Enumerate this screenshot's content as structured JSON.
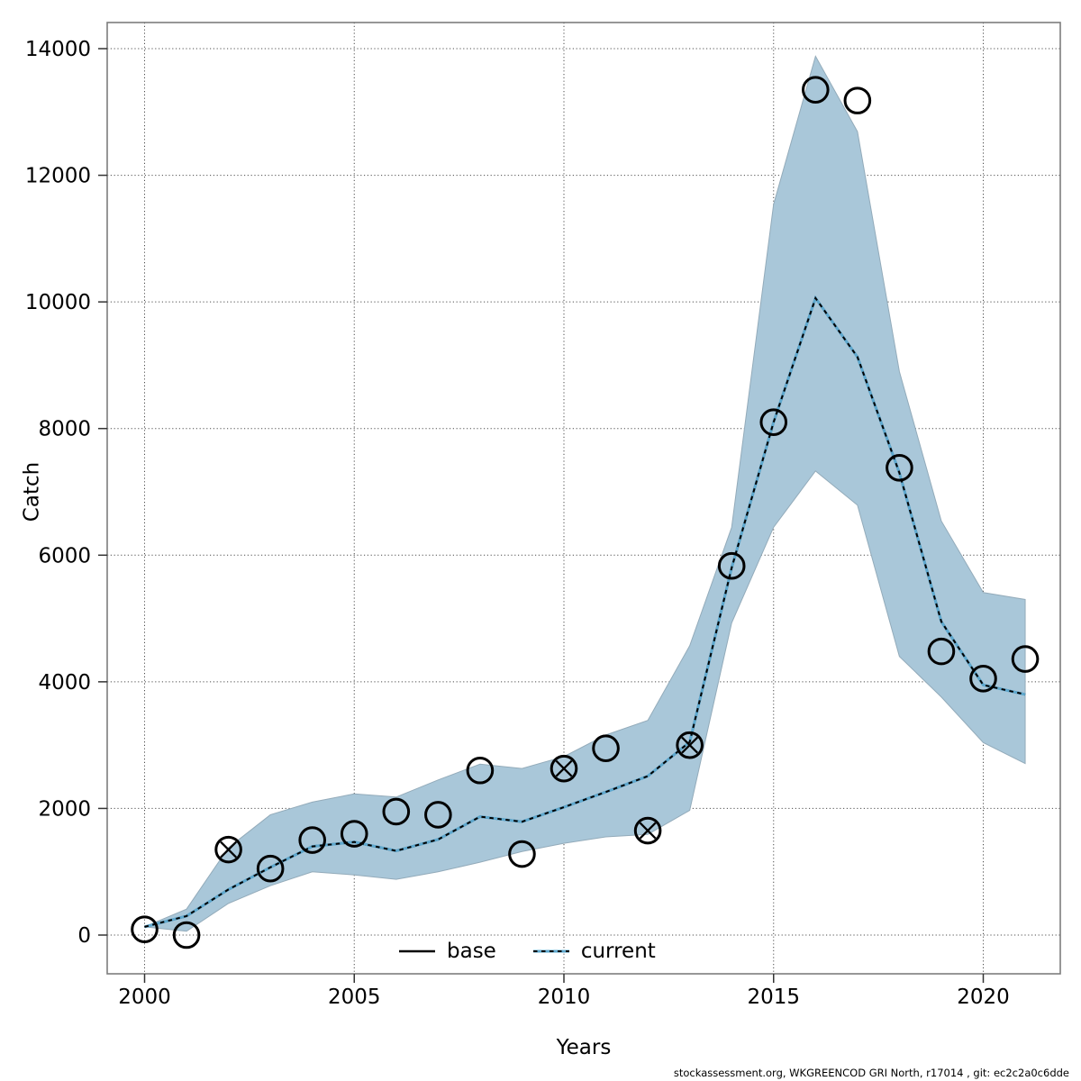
{
  "chart_data": {
    "type": "line",
    "title": "",
    "xlabel": "Years",
    "ylabel": "Catch",
    "x_ticks": [
      2000,
      2005,
      2010,
      2015,
      2020
    ],
    "y_ticks": [
      0,
      2000,
      4000,
      6000,
      8000,
      10000,
      12000,
      14000
    ],
    "xlim": [
      1999.1,
      2021.85
    ],
    "ylim": [
      -610,
      14410
    ],
    "grid": true,
    "years": [
      2000,
      2001,
      2002,
      2003,
      2004,
      2005,
      2006,
      2007,
      2008,
      2009,
      2010,
      2011,
      2012,
      2013,
      2014,
      2015,
      2016,
      2017,
      2018,
      2019,
      2020,
      2021
    ],
    "series": [
      {
        "name": "base",
        "style": "solid",
        "color": "#000000",
        "values": [
          130,
          300,
          720,
          1070,
          1400,
          1470,
          1330,
          1510,
          1870,
          1790,
          2020,
          2260,
          2510,
          3050,
          5800,
          8100,
          10060,
          9130,
          7300,
          4950,
          3950,
          3800
        ]
      },
      {
        "name": "current",
        "style": "dotted",
        "color": "#5ea8ce",
        "dash_color": "#000000",
        "values": [
          130,
          300,
          720,
          1070,
          1400,
          1470,
          1330,
          1510,
          1870,
          1790,
          2020,
          2260,
          2510,
          3050,
          5800,
          8100,
          10060,
          9130,
          7300,
          4950,
          3950,
          3800
        ]
      }
    ],
    "band": {
      "name": "current-confidence-interval",
      "fill": "#a9c7d9",
      "edge": "#93abba",
      "low": [
        130,
        60,
        500,
        780,
        1000,
        950,
        880,
        1000,
        1150,
        1320,
        1450,
        1550,
        1590,
        1970,
        4930,
        6440,
        7330,
        6790,
        4400,
        3760,
        3040,
        2710
      ],
      "high": [
        130,
        410,
        1380,
        1900,
        2100,
        2230,
        2180,
        2450,
        2700,
        2630,
        2820,
        3160,
        3390,
        4570,
        6440,
        11540,
        13880,
        12690,
        8900,
        6540,
        5410,
        5300
      ]
    },
    "observations": {
      "marker": "open-circle",
      "color": "#000000",
      "values": [
        90,
        0,
        1350,
        1050,
        1500,
        1600,
        1950,
        1900,
        2600,
        1280,
        2630,
        2950,
        1650,
        3000,
        5830,
        8100,
        13350,
        13180,
        7380,
        4480,
        4050,
        4360
      ],
      "crossed_years": [
        2002,
        2010,
        2012,
        2013
      ]
    },
    "legend": {
      "position": "bottom-center-inside",
      "items": [
        {
          "label": "base"
        },
        {
          "label": "current"
        }
      ]
    },
    "footer": "stockassessment.org, WKGREENCOD GRI North, r17014 , git: ec2c2a0c6dde",
    "colors": {
      "frame": "#7d7d7d",
      "grid": "#4d4d4d",
      "tick": "#333333",
      "text": "#000000",
      "band_fill": "#a9c7d9",
      "current_line": "#5ea8ce"
    }
  }
}
